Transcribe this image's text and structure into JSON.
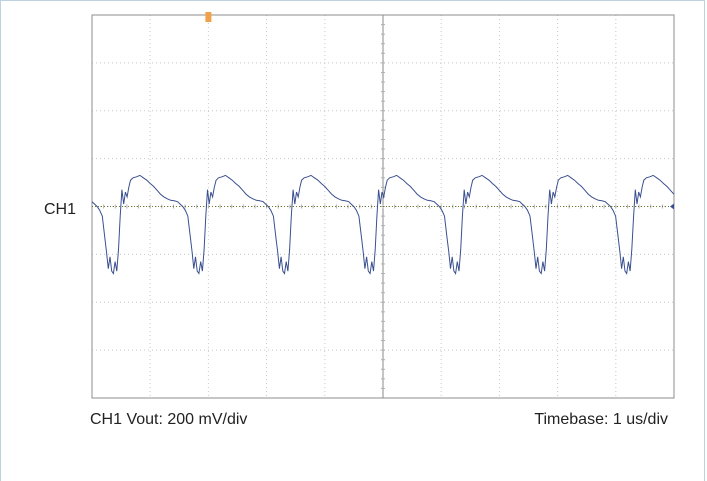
{
  "chart_data": {
    "type": "line",
    "channel_label": "CH1",
    "footer_left": "CH1 Vout: 200 mV/div",
    "footer_right": "Timebase: 1 us/div",
    "grid": true,
    "divisions": {
      "x": 10,
      "y": 8
    },
    "xlim_div": [
      0,
      10
    ],
    "ylim_div": [
      -4,
      4
    ],
    "baseline_div": 0,
    "trigger_marker_div": 3.95,
    "series": [
      {
        "color": "#3a4f8f",
        "values_div_comment_free": true,
        "waveform": {
          "period_div": 1.47,
          "shape": [
            [
              0.0,
              0.1
            ],
            [
              0.03,
              0.05
            ],
            [
              0.06,
              0.0
            ],
            [
              0.09,
              -0.08
            ],
            [
              0.12,
              -0.2
            ],
            [
              0.15,
              -0.65
            ],
            [
              0.17,
              -0.95
            ],
            [
              0.19,
              -1.3
            ],
            [
              0.21,
              -1.05
            ],
            [
              0.23,
              -1.35
            ],
            [
              0.25,
              -1.4
            ],
            [
              0.27,
              -1.15
            ],
            [
              0.29,
              -1.35
            ],
            [
              0.31,
              -0.9
            ],
            [
              0.33,
              -0.2
            ],
            [
              0.35,
              0.35
            ],
            [
              0.37,
              0.05
            ],
            [
              0.39,
              0.3
            ],
            [
              0.41,
              0.2
            ],
            [
              0.43,
              0.4
            ],
            [
              0.45,
              0.55
            ],
            [
              0.48,
              0.6
            ],
            [
              0.52,
              0.62
            ],
            [
              0.56,
              0.65
            ],
            [
              0.6,
              0.6
            ],
            [
              0.64,
              0.55
            ],
            [
              0.68,
              0.48
            ],
            [
              0.72,
              0.42
            ],
            [
              0.76,
              0.34
            ],
            [
              0.8,
              0.26
            ],
            [
              0.84,
              0.2
            ],
            [
              0.88,
              0.16
            ],
            [
              0.92,
              0.13
            ],
            [
              0.96,
              0.12
            ],
            [
              1.0,
              0.1
            ]
          ]
        }
      }
    ]
  }
}
